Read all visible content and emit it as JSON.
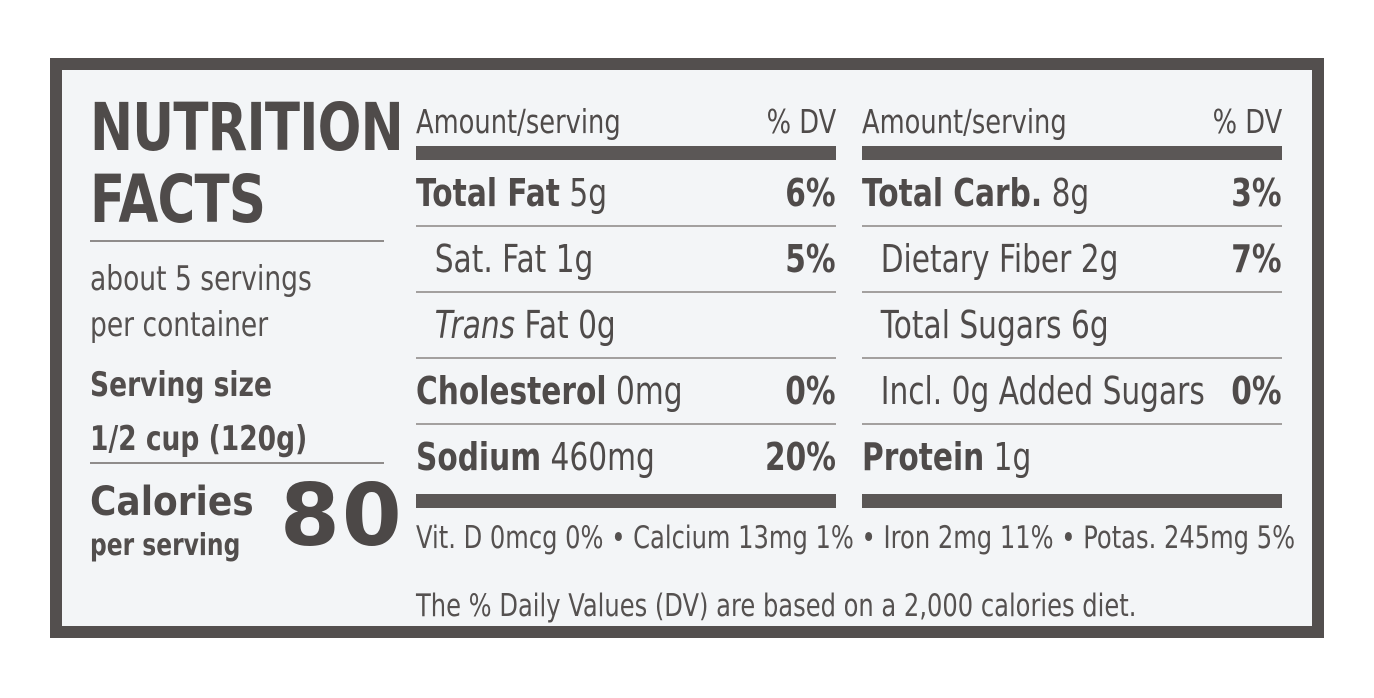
{
  "label": {
    "title_line1": "NUTRITION",
    "title_line2": "FACTS",
    "servings_line1": "about 5 servings",
    "servings_line2": "per container",
    "serving_size_label": "Serving size",
    "serving_size_value": "1/2 cup (120g)",
    "calories_label": "Calories",
    "calories_sub": "per serving",
    "calories_value": "80"
  },
  "header": {
    "amount_label": "Amount/serving",
    "dv_label": "% DV"
  },
  "left_rows": [
    {
      "name": "Total Fat",
      "amount": " 5g",
      "dv": "6%"
    },
    {
      "name": "Sat. Fat 1g",
      "amount": "",
      "dv": "5%"
    },
    {
      "name": "Trans",
      "amount": " Fat 0g",
      "dv": ""
    },
    {
      "name": "Cholesterol",
      "amount": " 0mg",
      "dv": "0%"
    },
    {
      "name": "Sodium",
      "amount": " 460mg",
      "dv": "20%"
    }
  ],
  "right_rows": [
    {
      "name": "Total Carb.",
      "amount": " 8g",
      "dv": "3%"
    },
    {
      "name": "Dietary Fiber 2g",
      "amount": "",
      "dv": "7%"
    },
    {
      "name": "Total Sugars 6g",
      "amount": "",
      "dv": ""
    },
    {
      "name": "Incl. 0g  Added Sugars",
      "amount": "",
      "dv": "0%"
    },
    {
      "name": "Protein",
      "amount": " 1g",
      "dv": ""
    }
  ],
  "vitamins": "Vit. D 0mcg 0% • Calcium 13mg 1% • Iron  2mg 11% • Potas. 245mg 5%",
  "footnote": "The % Daily Values (DV) are based on a 2,000 calories diet."
}
